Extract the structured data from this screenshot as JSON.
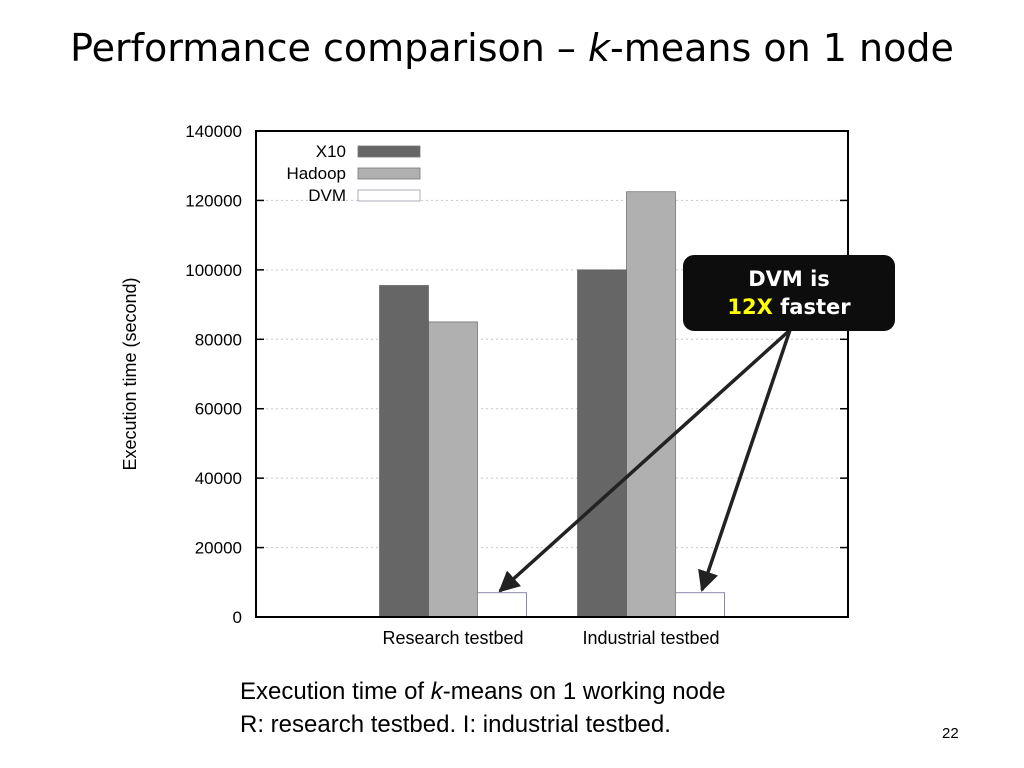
{
  "slide": {
    "title_before": "Performance comparison – ",
    "title_italic": "k",
    "title_after": "-means on 1 node",
    "caption_line1_before": "Execution time of ",
    "caption_line1_italic": "k",
    "caption_line1_after": "-means on 1 working node",
    "caption_line2": "R: research testbed. I: industrial testbed.",
    "page_number": "22"
  },
  "callout": {
    "line1": "DVM is",
    "highlight": "12X",
    "line2_rest": " faster",
    "highlight_color": "#ffff00",
    "background_color": "#0d0d0d"
  },
  "chart_data": {
    "type": "bar",
    "title": "",
    "xlabel": "",
    "ylabel": "Execution time (second)",
    "ylim": [
      0,
      140000
    ],
    "yticks": [
      0,
      20000,
      40000,
      60000,
      80000,
      100000,
      120000,
      140000
    ],
    "categories": [
      "Research testbed",
      "Industrial testbed"
    ],
    "series": [
      {
        "name": "X10",
        "values": [
          95500,
          100000
        ],
        "color": "#666666"
      },
      {
        "name": "Hadoop",
        "values": [
          85000,
          122500
        ],
        "color": "#b0b0b0"
      },
      {
        "name": "DVM",
        "values": [
          7000,
          7000
        ],
        "color": "#ffffff"
      }
    ],
    "grid": true,
    "legend_position": "top-left"
  }
}
